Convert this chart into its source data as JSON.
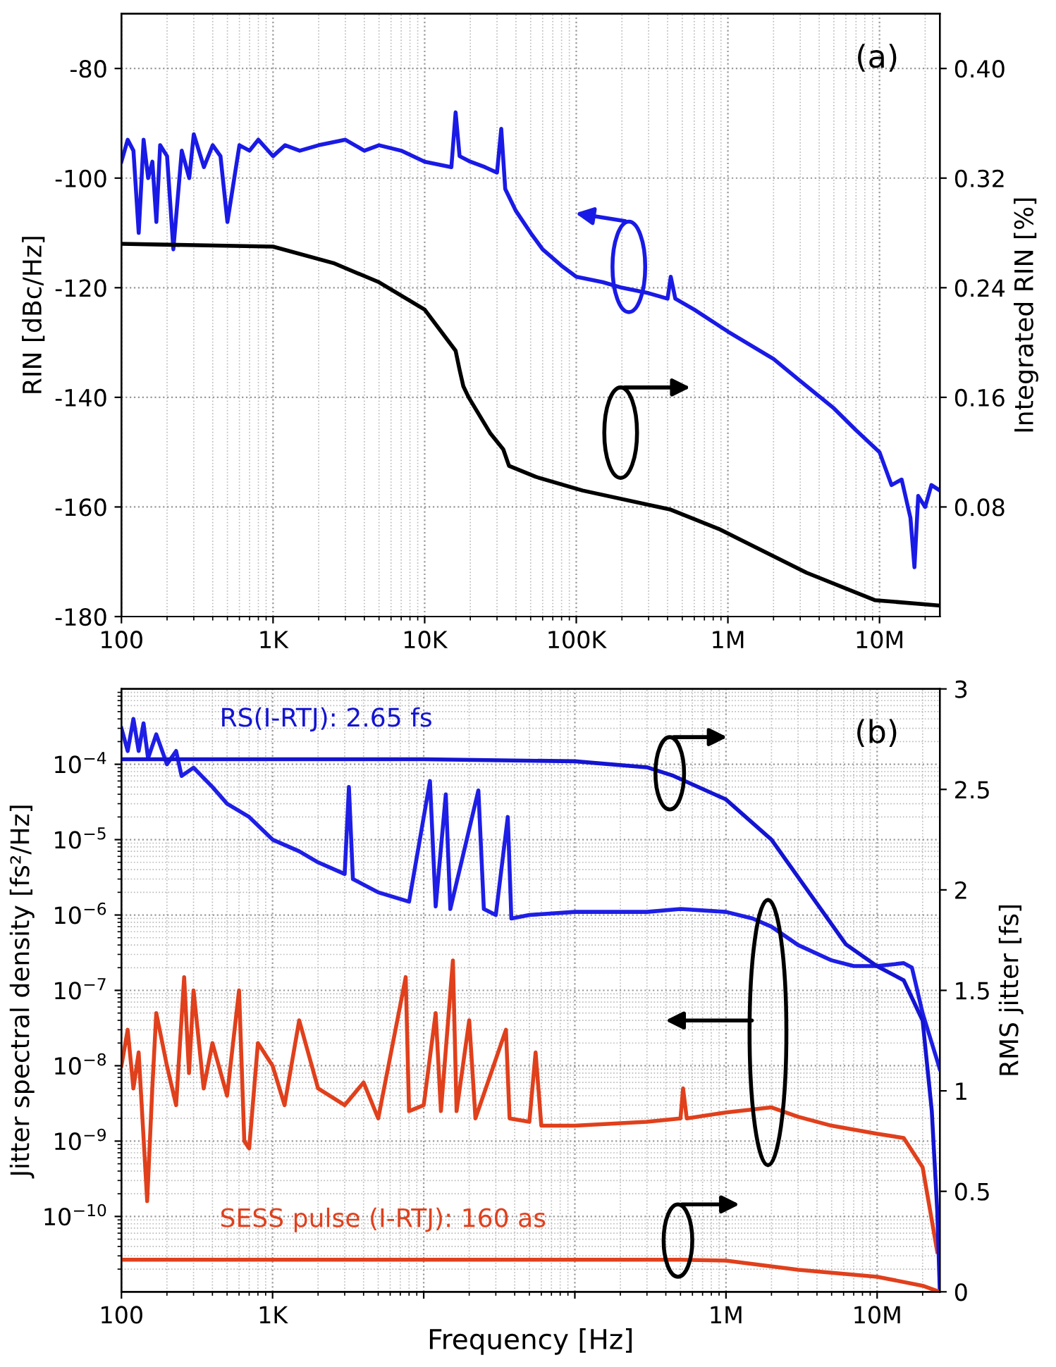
{
  "chart_data": [
    {
      "type": "line",
      "annotations": [
        "(a)"
      ],
      "ylabel": "RIN [dBc/Hz]",
      "y2label": "Integrated RIN [%]",
      "log": "x",
      "grid": true,
      "xlim": [
        100,
        25000000
      ],
      "xticks": [
        {
          "value": 100,
          "label": "100"
        },
        {
          "value": 1000,
          "label": "1K"
        },
        {
          "value": 10000,
          "label": "10K"
        },
        {
          "value": 100000,
          "label": "100K"
        },
        {
          "value": 1000000,
          "label": "1M"
        },
        {
          "value": 10000000,
          "label": "10M"
        }
      ],
      "ylim": [
        -180,
        -70
      ],
      "yticks": [
        -180,
        -160,
        -140,
        -120,
        -100,
        -80
      ],
      "y2lim": [
        0,
        0.44
      ],
      "y2ticks": [
        0.08,
        0.16,
        0.24,
        0.32,
        {
          "value": 0.4,
          "label": "0.40"
        }
      ],
      "series": [
        {
          "color": "#1a1ae6",
          "x": [
            100,
            110,
            120,
            130,
            140,
            150,
            160,
            170,
            180,
            200,
            220,
            250,
            280,
            300,
            350,
            400,
            450,
            500,
            600,
            700,
            800,
            1000,
            1200,
            1500,
            2000,
            3000,
            4000,
            5000,
            7000,
            10000,
            15000,
            16000,
            17000,
            20000,
            25000,
            30000,
            32000,
            34000,
            40000,
            50000,
            60000,
            80000,
            100000,
            150000,
            200000,
            300000,
            400000,
            420000,
            450000,
            600000,
            1000000,
            2000000,
            3000000,
            5000000,
            7000000,
            10000000,
            12000000,
            14000000,
            16000000,
            17000000,
            18000000,
            20000000,
            22000000,
            25000000
          ],
          "values": [
            -97,
            -93,
            -95,
            -110,
            -93,
            -100,
            -97,
            -108,
            -94,
            -96,
            -113,
            -95,
            -100,
            -92,
            -98,
            -94,
            -96,
            -108,
            -94,
            -95,
            -93,
            -96,
            -94,
            -95,
            -94,
            -93,
            -95,
            -94,
            -95,
            -97,
            -98,
            -88,
            -96,
            -97,
            -98,
            -99,
            -91,
            -102,
            -106,
            -110,
            -113,
            -116,
            -118,
            -119,
            -120,
            -121,
            -122,
            -118,
            -122,
            -124,
            -128,
            -133,
            -137,
            -142,
            -146,
            -150,
            -156,
            -155,
            -162,
            -171,
            -158,
            -160,
            -156,
            -157
          ]
        },
        {
          "color": "#000000",
          "axis": "y2",
          "x": [
            100,
            1000,
            2500,
            5000,
            10000,
            16000,
            17000,
            18000,
            19500,
            27000,
            33000,
            36000,
            54000,
            110000,
            420000,
            870000,
            3300000,
            9300000,
            25000000
          ],
          "values": [
            0.272,
            0.27,
            0.258,
            0.244,
            0.224,
            0.194,
            0.18,
            0.168,
            0.16,
            0.134,
            0.122,
            0.11,
            0.102,
            0.092,
            0.078,
            0.064,
            0.032,
            0.012,
            0.008
          ]
        }
      ]
    },
    {
      "type": "line",
      "annotations": [
        "(b)"
      ],
      "xlabel": "Frequency [Hz]",
      "ylabel": "Jitter spectral density [fs²/Hz]",
      "y2label": "RMS jitter [fs]",
      "log": "xy",
      "grid": true,
      "xlim": [
        100,
        26000000
      ],
      "xticks": [
        {
          "value": 100,
          "label": "100"
        },
        {
          "value": 1000,
          "label": "1K"
        },
        {
          "value": 10000,
          "label": null
        },
        {
          "value": 100000,
          "label": null
        },
        {
          "value": 1000000,
          "label": "1M"
        },
        {
          "value": 10000000,
          "label": "10M"
        }
      ],
      "ylim": [
        1e-11,
        0.001
      ],
      "yticks": [
        {
          "value": 1e-10,
          "label": "10$^{−10}$"
        },
        {
          "value": 1e-09,
          "label": "10$^{−9}$"
        },
        {
          "value": 1e-08,
          "label": "10$^{−8}$"
        },
        {
          "value": 1e-07,
          "label": "10$^{−7}$"
        },
        {
          "value": 1e-06,
          "label": "10$^{−6}$"
        },
        {
          "value": 1e-05,
          "label": "10$^{−5}$"
        },
        {
          "value": 0.0001,
          "label": "10$^{−4}$"
        }
      ],
      "y2lim": [
        0,
        3
      ],
      "y2ticks": [
        0,
        0.5,
        1,
        1.5,
        2,
        2.5,
        3
      ],
      "series": [
        {
          "color": "#1e1ee6",
          "x": [
            100,
            110,
            120,
            130,
            140,
            150,
            170,
            200,
            230,
            250,
            300,
            400,
            500,
            700,
            1000,
            1500,
            2000,
            3000,
            3200,
            3400,
            5000,
            8000,
            11000,
            12000,
            14000,
            15000,
            23000,
            25000,
            30000,
            36000,
            38000,
            50000,
            100000,
            300000,
            500000,
            1000000,
            1500000,
            2000000,
            3000000,
            5000000,
            7000000,
            10000000,
            15000000,
            17000000,
            20000000,
            23000000,
            26000000
          ],
          "values": [
            0.0003,
            0.00015,
            0.0004,
            0.00015,
            0.00035,
            0.00012,
            0.00025,
            0.0001,
            0.00015,
            7e-05,
            9e-05,
            5e-05,
            3e-05,
            2e-05,
            1e-05,
            7e-06,
            5e-06,
            3.5e-06,
            5e-05,
            3e-06,
            2e-06,
            1.5e-06,
            6e-05,
            1.3e-06,
            4e-05,
            1.2e-06,
            4.5e-05,
            1.2e-06,
            1e-06,
            2e-05,
            9e-07,
            1e-06,
            1.1e-06,
            1.1e-06,
            1.2e-06,
            1.1e-06,
            9e-07,
            7e-07,
            4e-07,
            2.5e-07,
            2.1e-07,
            2.1e-07,
            2.3e-07,
            2e-07,
            5e-08,
            2e-08,
            9e-09
          ]
        },
        {
          "name": "RS(I-RTJ): 2.65 fs",
          "color": "#1414d2",
          "axis": "y2",
          "x": [
            100,
            10000,
            100000,
            300000,
            440000,
            1000000,
            2000000,
            3600000,
            6200000,
            10000000,
            15000000,
            20000000,
            23000000,
            25000000,
            26000000
          ],
          "values": [
            2.65,
            2.65,
            2.64,
            2.61,
            2.57,
            2.45,
            2.25,
            1.98,
            1.73,
            1.62,
            1.55,
            1.35,
            0.9,
            0.4,
            0
          ]
        },
        {
          "color": "#e0401c",
          "x": [
            100,
            110,
            120,
            130,
            148,
            160,
            170,
            200,
            230,
            260,
            280,
            300,
            350,
            400,
            500,
            600,
            650,
            700,
            800,
            1000,
            1200,
            1500,
            2000,
            3000,
            4000,
            5000,
            7600,
            8000,
            10000,
            12000,
            13000,
            15600,
            16500,
            20000,
            22000,
            35000,
            37000,
            50000,
            55000,
            60000,
            100000,
            300000,
            500000,
            520000,
            550000,
            1000000,
            2000000,
            3000000,
            5000000,
            10000000,
            15000000,
            20000000,
            25000000
          ],
          "values": [
            1e-08,
            3e-08,
            5e-09,
            1.5e-08,
            1.6e-10,
            5e-09,
            5e-08,
            1e-08,
            3e-09,
            1.5e-07,
            8e-09,
            1e-07,
            5e-09,
            2e-08,
            4e-09,
            1e-07,
            1e-09,
            8e-10,
            2e-08,
            1e-08,
            3e-09,
            4e-08,
            5e-09,
            3e-09,
            6e-09,
            2e-09,
            1.5e-07,
            2.5e-09,
            3e-09,
            5e-08,
            2.5e-09,
            2.5e-07,
            2.5e-09,
            4e-08,
            2e-09,
            3e-08,
            2e-09,
            1.8e-09,
            1.5e-08,
            1.6e-09,
            1.6e-09,
            1.8e-09,
            2e-09,
            5e-09,
            2e-09,
            2.4e-09,
            2.8e-09,
            2.1e-09,
            1.6e-09,
            1.25e-09,
            1.1e-09,
            4.5e-10,
            3.4e-11
          ]
        },
        {
          "name": "SESS pulse (I-RTJ): 160 as",
          "color": "#e0401c",
          "axis": "y2",
          "x": [
            100,
            500000,
            1000000,
            3000000,
            10000000,
            20000000,
            26000000
          ],
          "values": [
            0.16,
            0.16,
            0.155,
            0.11,
            0.075,
            0.03,
            0
          ]
        }
      ]
    }
  ]
}
